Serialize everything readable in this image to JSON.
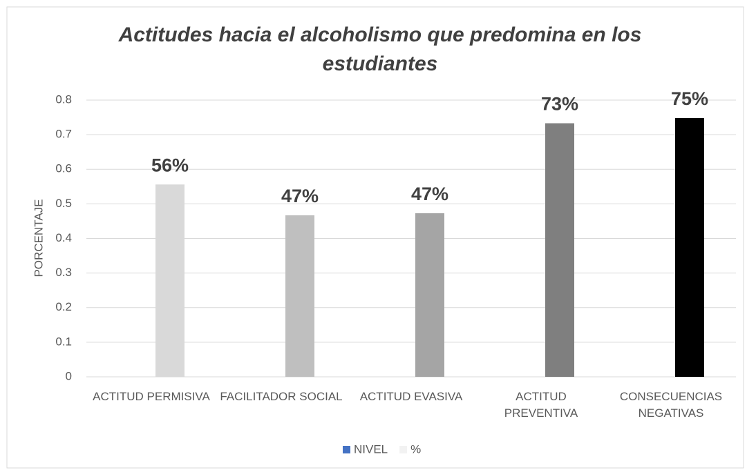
{
  "chart_data": {
    "type": "bar",
    "title": "Actitudes hacia el alcoholismo que predomina en los estudiantes",
    "y_label": "PORCENTAJE",
    "categories": [
      "ACTITUD PERMISIVA",
      "FACILITADOR SOCIAL",
      "ACTITUD EVASIVA",
      "ACTITUD PREVENTIVA",
      "CONSECUENCIAS NEGATIVAS"
    ],
    "series": [
      {
        "name": "NIVEL",
        "color": "#4472c4",
        "values": [
          null,
          null,
          null,
          null,
          null
        ]
      },
      {
        "name": "%",
        "color": "#f2f2f2",
        "colors": [
          "#d9d9d9",
          "#bfbfbf",
          "#a5a5a5",
          "#7f7f7f",
          "#000000"
        ],
        "values": [
          0.556,
          0.467,
          0.473,
          0.733,
          0.748
        ],
        "value_labels": [
          "56%",
          "47%",
          "47%",
          "73%",
          "75%"
        ]
      }
    ],
    "ylim": [
      0,
      0.8
    ],
    "yticks": [
      0,
      0.1,
      0.2,
      0.3,
      0.4,
      0.5,
      0.6,
      0.7,
      0.8
    ],
    "grid": true,
    "legend": "bottom"
  }
}
